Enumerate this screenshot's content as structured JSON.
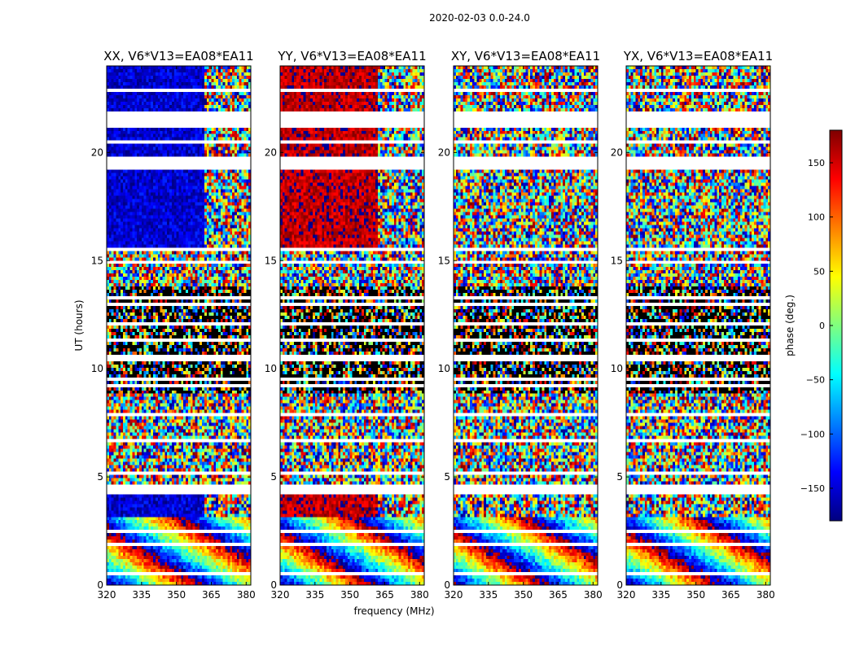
{
  "chart_data": {
    "type": "heatmap",
    "suptitle": "2020-02-03 0.0-24.0",
    "xlabel": "frequency (MHz)",
    "ylabel": "UT (hours)",
    "xlim": [
      320,
      382
    ],
    "ylim": [
      0,
      24
    ],
    "xticks": [
      320,
      335,
      350,
      365,
      380
    ],
    "yticks": [
      0,
      5,
      10,
      15,
      20
    ],
    "colorbar": {
      "label": "phase (deg.)",
      "range": [
        -180,
        180
      ],
      "ticks": [
        150,
        100,
        50,
        0,
        -50,
        -100,
        -150
      ],
      "tick_labels": [
        "150",
        "100",
        "50",
        "0",
        "−50",
        "−100",
        "−150"
      ],
      "colormap": [
        "#00007f",
        "#0000ff",
        "#007fff",
        "#00ffff",
        "#7fff7f",
        "#ffff00",
        "#ff7f00",
        "#ff0000",
        "#7f0000"
      ]
    },
    "panels": [
      {
        "title": "XX, V6*V13=EA08*EA11",
        "polarization": "XX",
        "coherent_phase_deg": -150
      },
      {
        "title": "YY, V6*V13=EA08*EA11",
        "polarization": "YY",
        "coherent_phase_deg": 160
      },
      {
        "title": "XY, V6*V13=EA08*EA11",
        "polarization": "XY",
        "coherent_phase_deg": null
      },
      {
        "title": "YX, V6*V13=EA08*EA11",
        "polarization": "YX",
        "coherent_phase_deg": null
      }
    ],
    "data_gaps_ut_hours": [
      [
        4.15,
        4.7
      ],
      [
        19.2,
        19.85
      ],
      [
        21.2,
        21.9
      ]
    ],
    "coherent_band_mhz": [
      320,
      362
    ],
    "dense_flagging_ut_hours": [
      [
        8.8,
        13.8
      ]
    ]
  }
}
